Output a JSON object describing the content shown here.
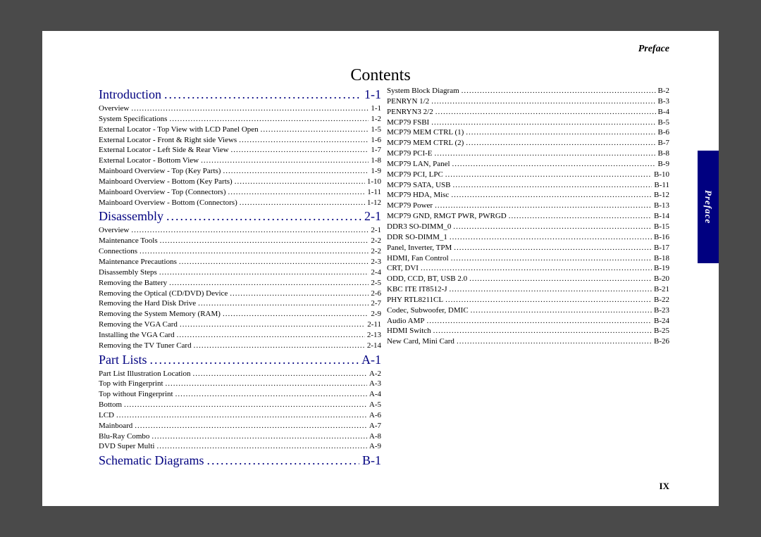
{
  "header_label": "Preface",
  "side_tab": "Preface",
  "page_number": "IX",
  "title": "Contents",
  "sections": [
    {
      "heading": "Introduction",
      "page": "1-1",
      "entries": [
        {
          "label": "Overview",
          "page": "1-1"
        },
        {
          "label": "System Specifications",
          "page": "1-2"
        },
        {
          "label": "External Locator - Top View with LCD Panel Open",
          "page": "1-5"
        },
        {
          "label": "External Locator - Front & Right side Views",
          "page": "1-6"
        },
        {
          "label": "External Locator - Left Side & Rear View",
          "page": "1-7"
        },
        {
          "label": "External Locator - Bottom View",
          "page": "1-8"
        },
        {
          "label": "Mainboard Overview - Top (Key Parts)",
          "page": "1-9"
        },
        {
          "label": "Mainboard Overview - Bottom (Key Parts)",
          "page": "1-10"
        },
        {
          "label": "Mainboard Overview - Top (Connectors)",
          "page": "1-11"
        },
        {
          "label": "Mainboard Overview - Bottom (Connectors)",
          "page": "1-12"
        }
      ]
    },
    {
      "heading": "Disassembly",
      "page": "2-1",
      "entries": [
        {
          "label": "Overview",
          "page": "2-1"
        },
        {
          "label": "Maintenance Tools",
          "page": "2-2"
        },
        {
          "label": "Connections",
          "page": "2-2"
        },
        {
          "label": "Maintenance Precautions",
          "page": "2-3"
        },
        {
          "label": "Disassembly Steps",
          "page": "2-4"
        },
        {
          "label": "Removing the Battery",
          "page": "2-5"
        },
        {
          "label": "Removing the Optical (CD/DVD) Device",
          "page": "2-6"
        },
        {
          "label": "Removing the Hard Disk Drive",
          "page": "2-7"
        },
        {
          "label": "Removing the System Memory (RAM)",
          "page": "2-9"
        },
        {
          "label": "Removing the VGA Card",
          "page": "2-11"
        },
        {
          "label": "Installing the VGA Card",
          "page": "2-13"
        },
        {
          "label": "Removing the TV Tuner Card",
          "page": "2-14"
        }
      ]
    },
    {
      "heading": "Part Lists",
      "page": "A-1",
      "entries": [
        {
          "label": "Part List Illustration Location",
          "page": "A-2"
        },
        {
          "label": "Top with Fingerprint",
          "page": "A-3"
        },
        {
          "label": "Top without Fingerprint",
          "page": "A-4"
        },
        {
          "label": "Bottom",
          "page": "A-5"
        }
      ]
    },
    {
      "heading": null,
      "page": null,
      "continuation": true,
      "entries": [
        {
          "label": "LCD",
          "page": "A-6"
        },
        {
          "label": "Mainboard",
          "page": "A-7"
        },
        {
          "label": "Blu-Ray Combo",
          "page": "A-8"
        },
        {
          "label": "DVD Super Multi",
          "page": "A-9"
        }
      ]
    },
    {
      "heading": "Schematic Diagrams",
      "page": "B-1",
      "entries": [
        {
          "label": "System Block Diagram",
          "page": "B-2"
        },
        {
          "label": "PENRYN 1/2",
          "page": "B-3"
        },
        {
          "label": "PENRYN3 2/2",
          "page": "B-4"
        },
        {
          "label": "MCP79 FSBI",
          "page": "B-5"
        },
        {
          "label": "MCP79 MEM CTRL (1)",
          "page": "B-6"
        },
        {
          "label": "MCP79 MEM CTRL (2)",
          "page": "B-7"
        },
        {
          "label": "MCP79 PCI-E",
          "page": "B-8"
        },
        {
          "label": "MCP79 LAN, Panel",
          "page": "B-9"
        },
        {
          "label": "MCP79 PCI, LPC",
          "page": "B-10"
        },
        {
          "label": "MCP79 SATA, USB",
          "page": "B-11"
        },
        {
          "label": "MCP79 HDA, Misc",
          "page": "B-12"
        },
        {
          "label": "MCP79 Power",
          "page": "B-13"
        },
        {
          "label": "MCP79 GND, RMGT PWR, PWRGD",
          "page": "B-14"
        },
        {
          "label": "DDR3 SO-DIMM_0",
          "page": "B-15"
        },
        {
          "label": "DDR SO-DIMM_1",
          "page": "B-16"
        },
        {
          "label": "Panel, Inverter, TPM",
          "page": "B-17"
        },
        {
          "label": "HDMI, Fan Control",
          "page": "B-18"
        },
        {
          "label": "CRT, DVI",
          "page": "B-19"
        },
        {
          "label": "ODD, CCD, BT, USB 2.0",
          "page": "B-20"
        },
        {
          "label": "KBC ITE IT8512-J",
          "page": "B-21"
        },
        {
          "label": "PHY RTL8211CL",
          "page": "B-22"
        },
        {
          "label": "Codec, Subwoofer, DMIC",
          "page": "B-23"
        },
        {
          "label": "Audio AMP",
          "page": "B-24"
        },
        {
          "label": "HDMI Switch",
          "page": "B-25"
        },
        {
          "label": "New Card, Mini Card",
          "page": "B-26"
        }
      ]
    }
  ]
}
